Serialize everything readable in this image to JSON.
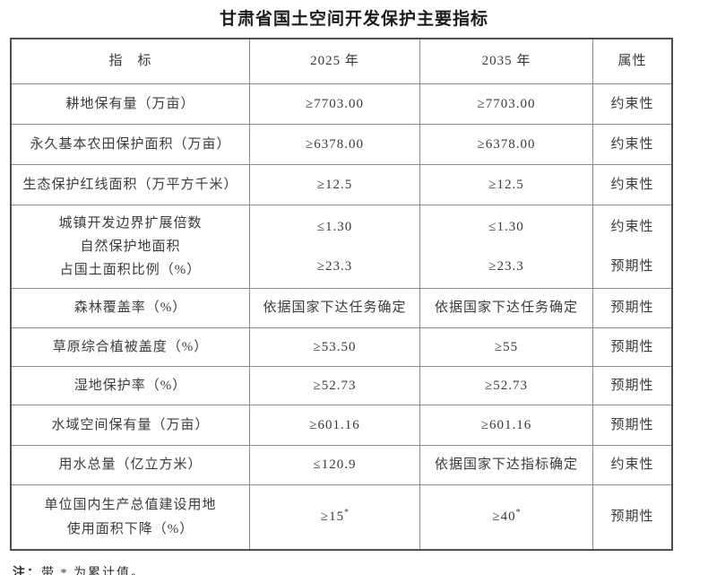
{
  "title": "甘肃省国土空间开发保护主要指标",
  "table": {
    "headers": [
      "指　标",
      "2025 年",
      "2035 年",
      "属性"
    ],
    "rows": [
      {
        "indicator": [
          "耕地保有量（万亩）"
        ],
        "v2025": [
          "≥7703.00"
        ],
        "v2035": [
          "≥7703.00"
        ],
        "attr": [
          "约束性"
        ]
      },
      {
        "indicator": [
          "永久基本农田保护面积（万亩）"
        ],
        "v2025": [
          "≥6378.00"
        ],
        "v2035": [
          "≥6378.00"
        ],
        "attr": [
          "约束性"
        ]
      },
      {
        "indicator": [
          "生态保护红线面积（万平方千米）"
        ],
        "v2025": [
          "≥12.5"
        ],
        "v2035": [
          "≥12.5"
        ],
        "attr": [
          "约束性"
        ]
      },
      {
        "indicator": [
          "城镇开发边界扩展倍数",
          "自然保护地面积",
          "占国土面积比例（%）"
        ],
        "v2025": [
          "≤1.30",
          "≥23.3"
        ],
        "v2035": [
          "≤1.30",
          "≥23.3"
        ],
        "attr": [
          "约束性",
          "预期性"
        ]
      },
      {
        "indicator": [
          "森林覆盖率（%）"
        ],
        "v2025": [
          "依据国家下达任务确定"
        ],
        "v2035": [
          "依据国家下达任务确定"
        ],
        "attr": [
          "预期性"
        ]
      },
      {
        "indicator": [
          "草原综合植被盖度（%）"
        ],
        "v2025": [
          "≥53.50"
        ],
        "v2035": [
          "≥55"
        ],
        "attr": [
          "预期性"
        ]
      },
      {
        "indicator": [
          "湿地保护率（%）"
        ],
        "v2025": [
          "≥52.73"
        ],
        "v2035": [
          "≥52.73"
        ],
        "attr": [
          "预期性"
        ]
      },
      {
        "indicator": [
          "水域空间保有量（万亩）"
        ],
        "v2025": [
          "≥601.16"
        ],
        "v2035": [
          "≥601.16"
        ],
        "attr": [
          "预期性"
        ]
      },
      {
        "indicator": [
          "用水总量（亿立方米）"
        ],
        "v2025": [
          "≤120.9"
        ],
        "v2035": [
          "依据国家下达指标确定"
        ],
        "attr": [
          "约束性"
        ]
      },
      {
        "indicator": [
          "单位国内生产总值建设用地",
          "使用面积下降（%）"
        ],
        "v2025": [
          "≥15"
        ],
        "v2035": [
          "≥40"
        ],
        "sup": "*",
        "attr": [
          "预期性"
        ]
      }
    ]
  },
  "note": {
    "label": "注：",
    "text": "带 * 为累计值。"
  }
}
